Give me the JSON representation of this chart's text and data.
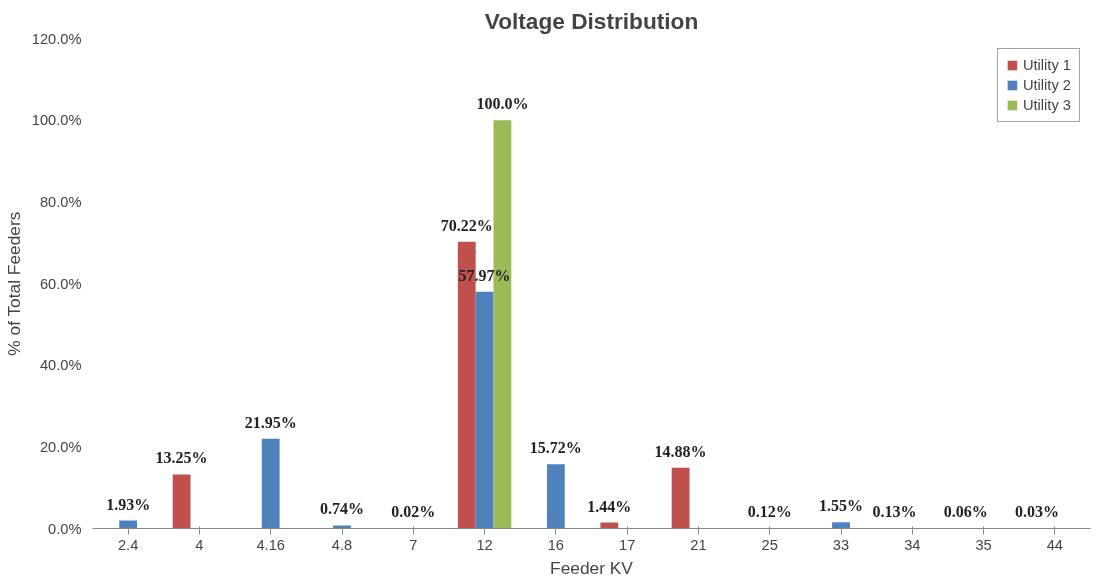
{
  "chart_data": {
    "type": "bar",
    "title": "Voltage Distribution",
    "xlabel": "Feeder KV",
    "ylabel": "% of Total Feeders",
    "categories": [
      "2.4",
      "4",
      "4.16",
      "4.8",
      "7",
      "12",
      "16",
      "17",
      "21",
      "25",
      "33",
      "34",
      "35",
      "44"
    ],
    "series": [
      {
        "name": "Utility 1",
        "color": "#c0504d",
        "values": [
          null,
          13.25,
          null,
          null,
          null,
          70.22,
          null,
          1.44,
          14.88,
          null,
          null,
          0.13,
          0.06,
          0.03
        ],
        "value_labels": [
          null,
          "13.25%",
          null,
          null,
          null,
          "70.22%",
          null,
          "1.44%",
          "14.88%",
          null,
          null,
          "0.13%",
          "0.06%",
          "0.03%"
        ]
      },
      {
        "name": "Utility 2",
        "color": "#4f81bd",
        "values": [
          1.93,
          null,
          21.95,
          0.74,
          0.02,
          57.97,
          15.72,
          null,
          null,
          0.12,
          1.55,
          null,
          null,
          null
        ],
        "value_labels": [
          "1.93%",
          null,
          "21.95%",
          "0.74%",
          "0.02%",
          "57.97%",
          "15.72%",
          null,
          null,
          "0.12%",
          "1.55%",
          null,
          null,
          null
        ]
      },
      {
        "name": "Utility 3",
        "color": "#9bbb59",
        "values": [
          null,
          null,
          null,
          null,
          null,
          100.0,
          null,
          null,
          null,
          null,
          null,
          null,
          null,
          null
        ],
        "value_labels": [
          null,
          null,
          null,
          null,
          null,
          "100.0%",
          null,
          null,
          null,
          null,
          null,
          null,
          null,
          null
        ]
      }
    ],
    "ylim": [
      0,
      120
    ],
    "yticks": [
      {
        "value": 0,
        "label": "0.0%"
      },
      {
        "value": 20,
        "label": "20.0%"
      },
      {
        "value": 40,
        "label": "40.0%"
      },
      {
        "value": 60,
        "label": "60.0%"
      },
      {
        "value": 80,
        "label": "80.0%"
      },
      {
        "value": 100,
        "label": "100.0%"
      },
      {
        "value": 120,
        "label": "120.0%"
      }
    ],
    "grid": false,
    "legend": "top right"
  }
}
